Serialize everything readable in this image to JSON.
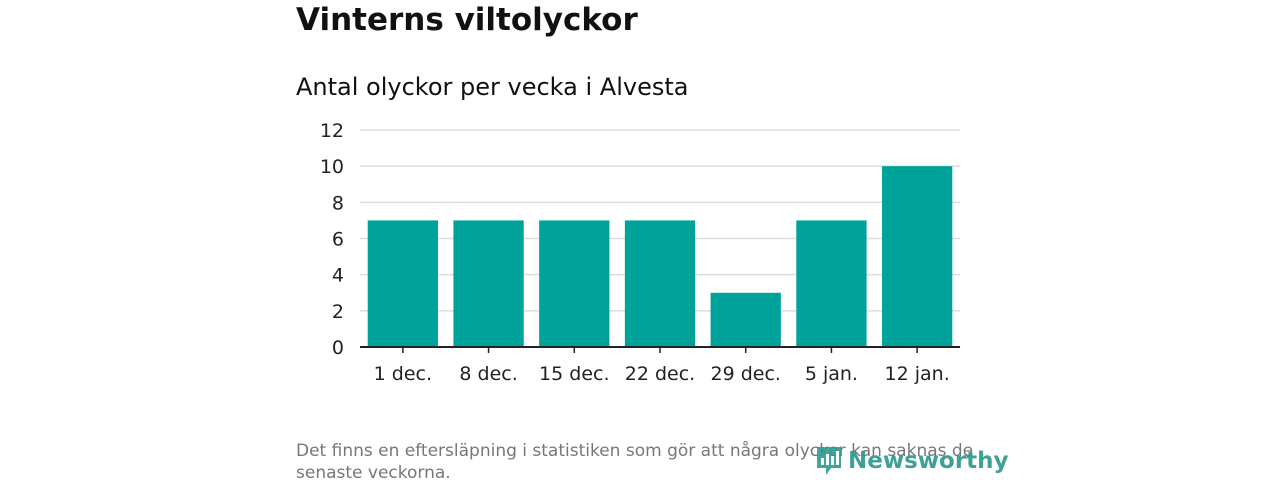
{
  "header": {
    "title": "Vinterns viltolyckor",
    "subtitle": "Antal olyckor per vecka i Alvesta"
  },
  "chart_data": {
    "type": "bar",
    "title": "Vinterns viltolyckor",
    "subtitle": "Antal olyckor per vecka i Alvesta",
    "categories": [
      "1 dec.",
      "8 dec.",
      "15 dec.",
      "22 dec.",
      "29 dec.",
      "5 jan.",
      "12 jan."
    ],
    "values": [
      7,
      7,
      7,
      7,
      3,
      7,
      10
    ],
    "xlabel": "",
    "ylabel": "",
    "ylim": [
      0,
      12
    ],
    "yticks": [
      0,
      2,
      4,
      6,
      8,
      10,
      12
    ],
    "grid": true,
    "legend": "none",
    "bar_color": "#00a39a"
  },
  "footer": {
    "note": "Det finns en eftersläpning i statistiken som gör att några olyckor kan saknas de senaste veckorna.",
    "brand": "Newsworthy",
    "brand_icon": "newsworthy-logo-icon",
    "brand_color": "#2f9a8e"
  }
}
